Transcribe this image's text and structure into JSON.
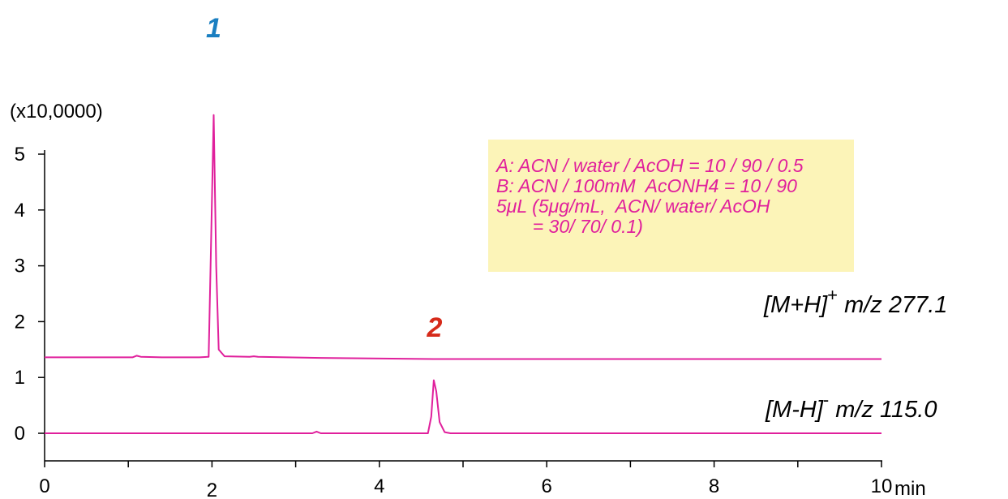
{
  "chart_data": {
    "type": "line",
    "title": "",
    "y_unit": "(x10,0000)",
    "x_unit": "min",
    "x_range": [
      0,
      10
    ],
    "y_range": [
      -0.5,
      5
    ],
    "x_ticks": [
      0,
      2,
      4,
      6,
      8,
      10
    ],
    "y_ticks": [
      0,
      1,
      2,
      3,
      4,
      5
    ],
    "line_color": "#e0209c",
    "series": [
      {
        "name": "[M+H]+ m/z 277.1",
        "label_parts": {
          "main": "[M+H]",
          "sup": "+",
          "rest": " m/z 277.1"
        },
        "points": [
          [
            0,
            1.36
          ],
          [
            1.05,
            1.36
          ],
          [
            1.1,
            1.39
          ],
          [
            1.15,
            1.37
          ],
          [
            1.4,
            1.36
          ],
          [
            1.85,
            1.36
          ],
          [
            1.96,
            1.37
          ],
          [
            1.99,
            3.5
          ],
          [
            2.02,
            5.7
          ],
          [
            2.05,
            3.0
          ],
          [
            2.08,
            1.5
          ],
          [
            2.15,
            1.38
          ],
          [
            2.45,
            1.37
          ],
          [
            2.5,
            1.38
          ],
          [
            2.55,
            1.37
          ],
          [
            3.3,
            1.35
          ],
          [
            4.65,
            1.33
          ],
          [
            10,
            1.33
          ]
        ]
      },
      {
        "name": "[M-H]- m/z 115.0",
        "label_parts": {
          "main": "[M-H]",
          "sup": "-",
          "rest": " m/z 115.0"
        },
        "points": [
          [
            0,
            0
          ],
          [
            3.2,
            0
          ],
          [
            3.25,
            0.03
          ],
          [
            3.3,
            0
          ],
          [
            4.58,
            0
          ],
          [
            4.62,
            0.3
          ],
          [
            4.65,
            0.95
          ],
          [
            4.68,
            0.75
          ],
          [
            4.72,
            0.2
          ],
          [
            4.78,
            0.02
          ],
          [
            4.85,
            0
          ],
          [
            10,
            0
          ]
        ]
      }
    ],
    "peaks": [
      {
        "label": "1",
        "x": 2.02,
        "y": 5.7,
        "color": "#1a7fc1"
      },
      {
        "label": "2",
        "x": 4.66,
        "y": 1.33,
        "color": "#d62a1a"
      }
    ],
    "conditions": {
      "lines": [
        "A: ACN / water / AcOH = 10 / 90 / 0.5",
        "B: ACN / 100mM  AcONH4 = 10 / 90",
        "5μL (5μg/mL,  ACN/ water/ AcOH",
        "       = 30/ 70/ 0.1)"
      ],
      "background": "#fcf4b8"
    }
  }
}
